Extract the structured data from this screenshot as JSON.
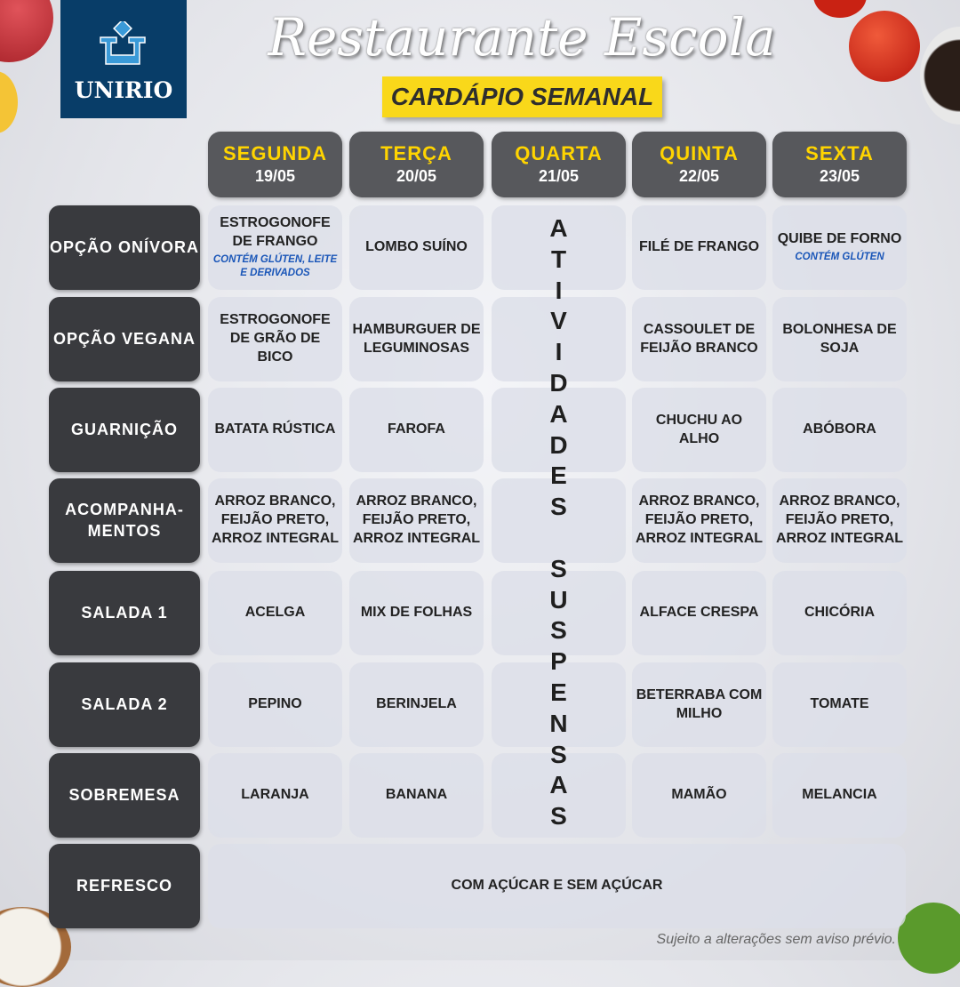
{
  "logo": {
    "text": "UNIRIO",
    "color": "#083d68"
  },
  "title": "Restaurante Escola",
  "subtitle": "CARDÁPIO SEMANAL",
  "colors": {
    "accent": "#ffd400",
    "banner": "#f9d81a",
    "label_bg": "#393a3e",
    "header_bg": "#57585c",
    "note": "#1a56b8"
  },
  "days": [
    {
      "name": "SEGUNDA",
      "date": "19/05"
    },
    {
      "name": "TERÇA",
      "date": "20/05"
    },
    {
      "name": "QUARTA",
      "date": "21/05"
    },
    {
      "name": "QUINTA",
      "date": "22/05"
    },
    {
      "name": "SEXTA",
      "date": "23/05"
    }
  ],
  "suspended_text": "ATIVIDADES SUSPENSAS",
  "rows": [
    {
      "label": "OPÇÃO ONÍVORA",
      "cells": [
        {
          "text": "ESTROGONOFE DE FRANGO",
          "note": "CONTÉM GLÚTEN, LEITE E DERIVADOS"
        },
        {
          "text": "LOMBO SUÍNO"
        },
        null,
        {
          "text": "FILÉ DE FRANGO"
        },
        {
          "text": "QUIBE DE FORNO",
          "note": "CONTÉM GLÚTEN"
        }
      ]
    },
    {
      "label": "OPÇÃO VEGANA",
      "cells": [
        {
          "text": "ESTROGONOFE DE GRÃO DE BICO"
        },
        {
          "text": "HAMBURGUER DE LEGUMINOSAS"
        },
        null,
        {
          "text": "CASSOULET DE FEIJÃO BRANCO"
        },
        {
          "text": "BOLONHESA DE SOJA"
        }
      ]
    },
    {
      "label": "GUARNIÇÃO",
      "cells": [
        {
          "text": "BATATA RÚSTICA"
        },
        {
          "text": "FAROFA"
        },
        null,
        {
          "text": "CHUCHU AO ALHO"
        },
        {
          "text": "ABÓBORA"
        }
      ]
    },
    {
      "label": "ACOMPANHA-MENTOS",
      "cells": [
        {
          "text": "ARROZ BRANCO, FEIJÃO PRETO, ARROZ INTEGRAL"
        },
        {
          "text": "ARROZ BRANCO, FEIJÃO PRETO, ARROZ INTEGRAL"
        },
        null,
        {
          "text": "ARROZ BRANCO, FEIJÃO PRETO, ARROZ INTEGRAL"
        },
        {
          "text": "ARROZ BRANCO, FEIJÃO PRETO, ARROZ INTEGRAL"
        }
      ]
    },
    {
      "label": "SALADA 1",
      "cells": [
        {
          "text": "ACELGA"
        },
        {
          "text": "MIX DE FOLHAS"
        },
        null,
        {
          "text": "ALFACE CRESPA"
        },
        {
          "text": "CHICÓRIA"
        }
      ]
    },
    {
      "label": "SALADA 2",
      "cells": [
        {
          "text": "PEPINO"
        },
        {
          "text": "BERINJELA"
        },
        null,
        {
          "text": "BETERRABA COM MILHO"
        },
        {
          "text": "TOMATE"
        }
      ]
    },
    {
      "label": "SOBREMESA",
      "cells": [
        {
          "text": "LARANJA"
        },
        {
          "text": "BANANA"
        },
        null,
        {
          "text": "MAMÃO"
        },
        {
          "text": "MELANCIA"
        }
      ]
    }
  ],
  "refresco": {
    "label": "REFRESCO",
    "text": "COM AÇÚCAR E SEM AÇÚCAR"
  },
  "footer": "Sujeito a alterações sem aviso prévio."
}
